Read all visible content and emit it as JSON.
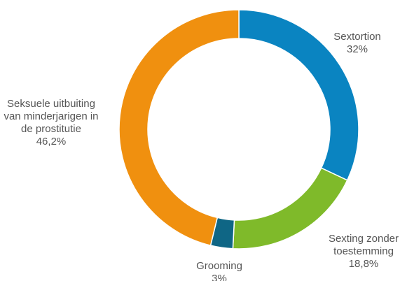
{
  "chart_data": {
    "type": "pie",
    "variant": "donut",
    "title": "",
    "start_angle_deg": 0,
    "direction": "clockwise",
    "slices": [
      {
        "key": "sextortion",
        "label_lines": [
          "Sextortion"
        ],
        "value": 32,
        "value_label": "32%",
        "color": "#0a84c1"
      },
      {
        "key": "sexting",
        "label_lines": [
          "Sexting zonder",
          "toestemming"
        ],
        "value": 18.8,
        "value_label": "18,8%",
        "color": "#7fba2a"
      },
      {
        "key": "grooming",
        "label_lines": [
          "Grooming"
        ],
        "value": 3,
        "value_label": "3%",
        "color": "#0f6685"
      },
      {
        "key": "prostitutie",
        "label_lines": [
          "Seksuele uitbuiting",
          "van minderjarigen in",
          "de prostitutie"
        ],
        "value": 46.2,
        "value_label": "46,2%",
        "color": "#f0900f"
      }
    ]
  }
}
